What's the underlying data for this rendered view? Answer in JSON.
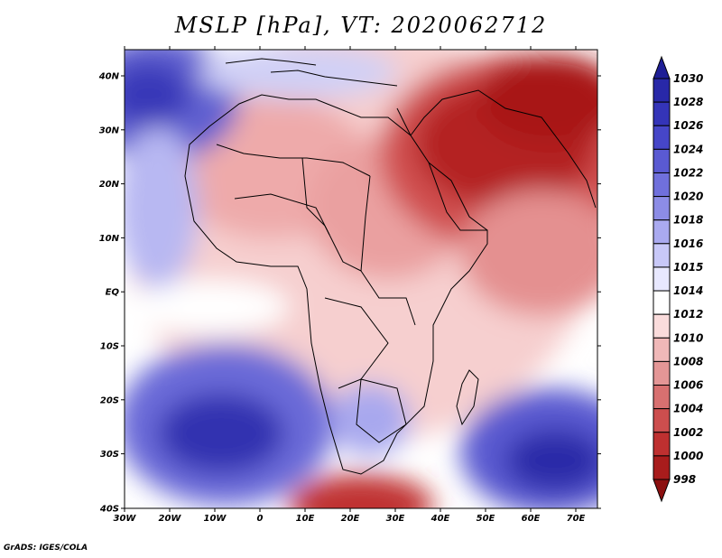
{
  "title": "MSLP [hPa], VT: 2020062712",
  "credit": "GrADS: IGES/COLA",
  "lat_labels": [
    "40N",
    "30N",
    "20N",
    "10N",
    "EQ",
    "10S",
    "20S",
    "30S",
    "40S"
  ],
  "lon_labels": [
    "30W",
    "20W",
    "10W",
    "0",
    "10E",
    "20E",
    "30E",
    "40E",
    "50E",
    "60E",
    "70E"
  ],
  "colorbar": {
    "levels": [
      "1030",
      "1028",
      "1026",
      "1024",
      "1022",
      "1020",
      "1018",
      "1016",
      "1015",
      "1014",
      "1012",
      "1010",
      "1008",
      "1006",
      "1004",
      "1002",
      "1000",
      "998"
    ],
    "colors": [
      "#1e1e96",
      "#2828a8",
      "#3434b8",
      "#4646c8",
      "#5a5ad2",
      "#7070dc",
      "#8c8ce6",
      "#aaaaf0",
      "#c8c8f8",
      "#e8e8ff",
      "#ffffff",
      "#fadcdc",
      "#f0b8b8",
      "#e49696",
      "#d87070",
      "#cc4e4e",
      "#be3030",
      "#a81c1c",
      "#8c1010"
    ]
  }
}
